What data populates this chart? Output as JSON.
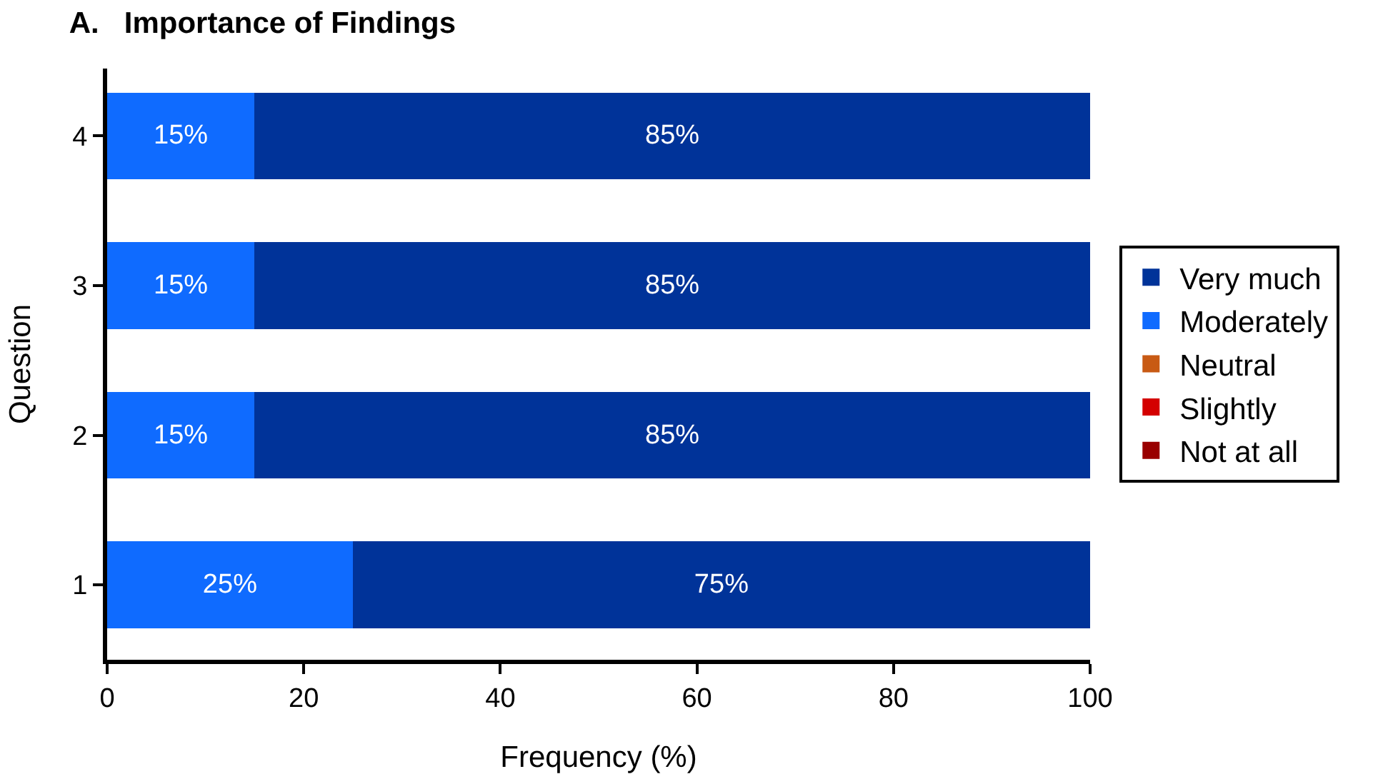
{
  "chart_data": {
    "type": "bar",
    "title": "A.   Importance of Findings",
    "orientation": "horizontal",
    "stacked": true,
    "categories": [
      "4",
      "3",
      "2",
      "1"
    ],
    "series": [
      {
        "name": "Not at all",
        "color": "#990000",
        "values": [
          0,
          0,
          0,
          0
        ]
      },
      {
        "name": "Slightly",
        "color": "#d40000",
        "values": [
          0,
          0,
          0,
          0
        ]
      },
      {
        "name": "Neutral",
        "color": "#c85a14",
        "values": [
          0,
          0,
          0,
          0
        ]
      },
      {
        "name": "Moderately",
        "color": "#0f6bff",
        "values": [
          15,
          15,
          15,
          25
        ],
        "value_labels": [
          "15%",
          "15%",
          "15%",
          "25%"
        ]
      },
      {
        "name": "Very much",
        "color": "#003399",
        "values": [
          85,
          85,
          85,
          75
        ],
        "value_labels": [
          "85%",
          "85%",
          "85%",
          "75%"
        ]
      }
    ],
    "xlabel": "Frequency (%)",
    "ylabel": "Question",
    "xlim": [
      0,
      100
    ],
    "xticks": [
      0,
      20,
      40,
      60,
      80,
      100
    ],
    "grid": false,
    "legend": "right"
  }
}
